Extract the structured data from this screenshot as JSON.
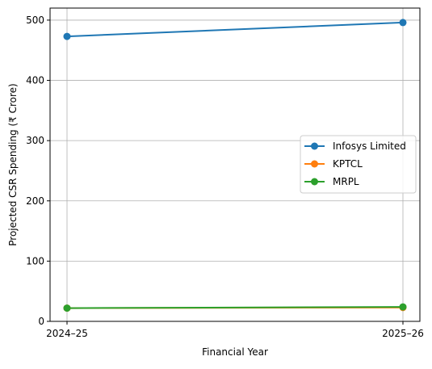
{
  "chart_data": {
    "type": "line",
    "title": "",
    "xlabel": "Financial Year",
    "ylabel": "Projected CSR Spending (₹ Crore)",
    "categories": [
      "2024–25",
      "2025–26"
    ],
    "ylim": [
      0,
      520
    ],
    "yticks": [
      0,
      100,
      200,
      300,
      400,
      500
    ],
    "grid": true,
    "legend_position": "center-right",
    "series": [
      {
        "name": "Infosys Limited",
        "color": "#1f77b4",
        "values": [
          473,
          496
        ]
      },
      {
        "name": "KPTCL",
        "color": "#ff7f0e",
        "values": [
          22,
          23
        ]
      },
      {
        "name": "MRPL",
        "color": "#2ca02c",
        "values": [
          22,
          24
        ]
      }
    ]
  }
}
